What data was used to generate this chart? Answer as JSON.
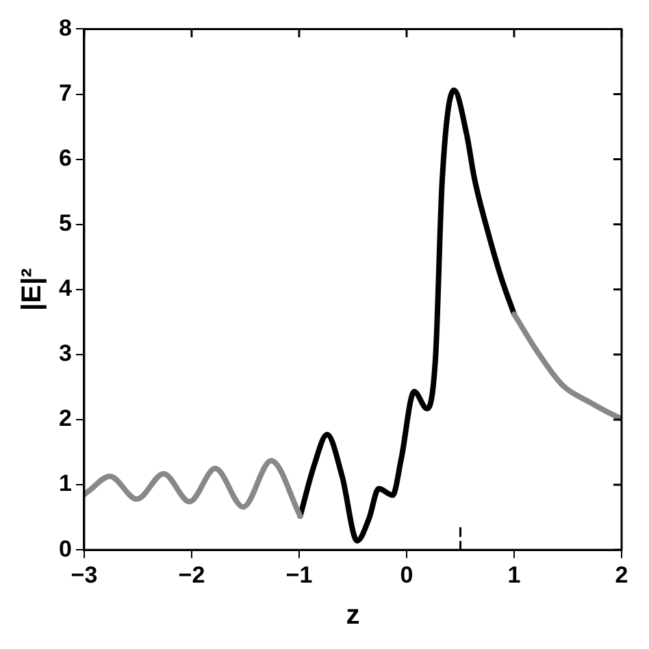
{
  "chart_data": {
    "type": "line",
    "xlabel": "z",
    "ylabel": "|E|²",
    "xlim": [
      -3,
      2
    ],
    "ylim": [
      0,
      8
    ],
    "xticks": [
      -3,
      -2,
      -1,
      0,
      1,
      2
    ],
    "yticks": [
      0,
      1,
      2,
      3,
      4,
      5,
      6,
      7,
      8
    ],
    "grid": false,
    "legend": false,
    "marker": "none",
    "line_style": "solid",
    "series": [
      {
        "color": "#888888",
        "x": [
          -3,
          -2.96,
          -2.76,
          -2.51,
          -2.26,
          -2.02,
          -1.78,
          -1.52,
          -1.26,
          -0.99,
          0,
          1,
          1.21,
          1.45,
          1.7,
          1.98,
          2
        ],
        "values": [
          0.85,
          0.9,
          1.13,
          0.78,
          1.17,
          0.74,
          1.25,
          0.66,
          1.37,
          0.52,
          null,
          3.62,
          3.06,
          2.53,
          2.27,
          2.03,
          2.02
        ]
      },
      {
        "color": "#000000",
        "x": [
          -0.99,
          -0.86,
          -0.74,
          -0.6,
          -0.46,
          -0.35,
          -0.26,
          -0.13,
          -0.05,
          0.07,
          0.19,
          0.27,
          0.33,
          0.44,
          0.56,
          0.63,
          0.76,
          0.88,
          1
        ],
        "values": [
          0.52,
          1.3,
          1.77,
          1.13,
          0.14,
          0.48,
          0.94,
          0.84,
          1.4,
          2.43,
          2.17,
          2.99,
          5.65,
          7.06,
          6.37,
          5.71,
          4.86,
          4.18,
          3.62
        ]
      },
      {
        "color": "#000000",
        "line_style": "dashed",
        "x": [
          0.5,
          0.5
        ],
        "values": [
          0,
          0.4
        ]
      }
    ]
  }
}
